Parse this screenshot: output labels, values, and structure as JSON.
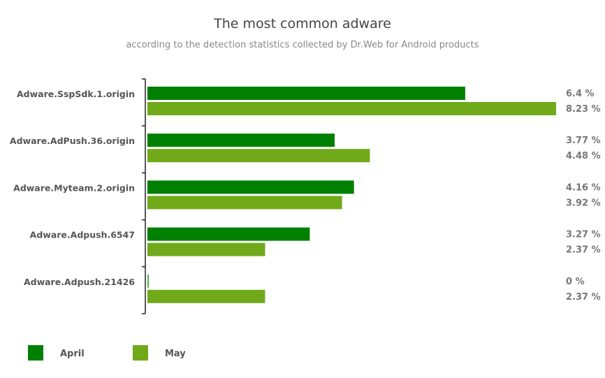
{
  "chart_data": {
    "type": "bar",
    "orientation": "horizontal",
    "title": "The most common adware",
    "subtitle": "according to the detection statistics collected by Dr.Web for Android products",
    "categories": [
      "Adware.SspSdk.1.origin",
      "Adware.AdPush.36.origin",
      "Adware.Myteam.2.origin",
      "Adware.Adpush.6547",
      "Adware.Adpush.21426"
    ],
    "series": [
      {
        "name": "April",
        "color": "#008000",
        "values": [
          6.4,
          3.77,
          4.16,
          3.27,
          0
        ],
        "labels": [
          "6.4 %",
          "3.77 %",
          "4.16 %",
          "3.27 %",
          "0 %"
        ]
      },
      {
        "name": "May",
        "color": "#70a91a",
        "values": [
          8.23,
          4.48,
          3.92,
          2.37,
          2.37
        ],
        "labels": [
          "8.23 %",
          "4.48 %",
          "3.92 %",
          "2.37 %",
          "2.37 %"
        ]
      }
    ],
    "xlim": [
      0,
      8.23
    ],
    "grid": false,
    "legend": "bottom-left"
  }
}
